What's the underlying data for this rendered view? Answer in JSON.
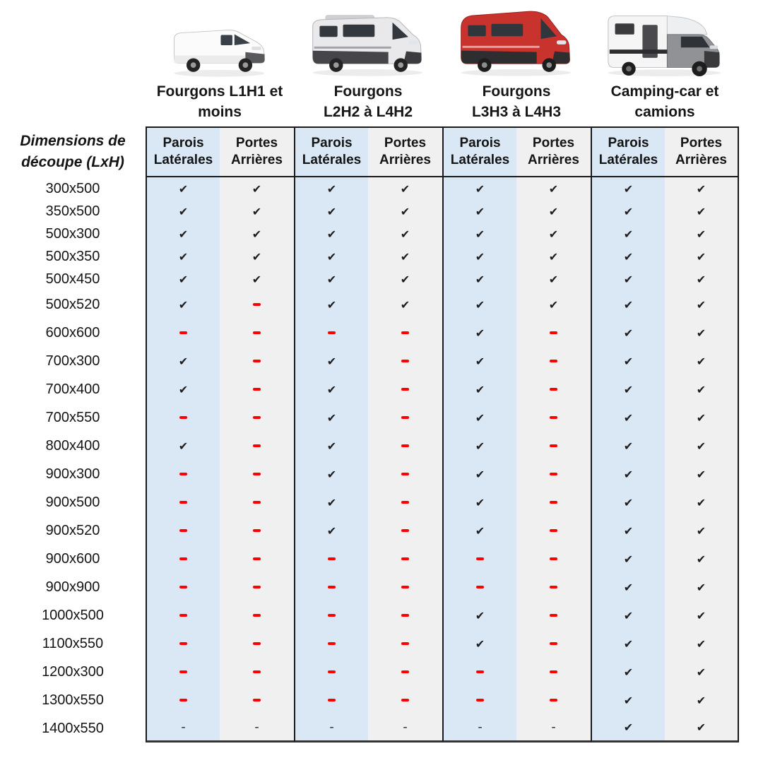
{
  "groups": [
    {
      "id": "fourgons-l1h1",
      "title_lines": [
        "Fourgons L1H1 et",
        "moins"
      ],
      "vehicle": "white-compact-van"
    },
    {
      "id": "fourgons-l2h2-l4h2",
      "title_lines": [
        "Fourgons",
        "L2H2 à L4H2"
      ],
      "vehicle": "grey-camper-van"
    },
    {
      "id": "fourgons-l3h3-l4h3",
      "title_lines": [
        "Fourgons",
        "L3H3 à L4H3"
      ],
      "vehicle": "red-high-roof-van"
    },
    {
      "id": "camping-car",
      "title_lines": [
        "Camping-car et",
        "camions"
      ],
      "vehicle": "grey-motorhome"
    }
  ],
  "row_header_lines": [
    "Dimensions de",
    "découpe (LxH)"
  ],
  "sub_columns": [
    {
      "lines": [
        "Parois",
        "Latérales"
      ]
    },
    {
      "lines": [
        "Portes",
        "Arrières"
      ]
    }
  ],
  "symbols": {
    "check": "✔",
    "black_dash": "-"
  },
  "colors": {
    "parois_column_bg": "#DAE8F6",
    "portes_column_bg": "#F0F0F0",
    "check": "#1D1D20",
    "red_dash": "#FF0000",
    "black_dash": "#333333",
    "border": "#1A1A1A"
  },
  "rows": [
    {
      "dim": "300x500",
      "compact": true,
      "cells": [
        "check",
        "check",
        "check",
        "check",
        "check",
        "check",
        "check",
        "check"
      ]
    },
    {
      "dim": "350x500",
      "compact": true,
      "cells": [
        "check",
        "check",
        "check",
        "check",
        "check",
        "check",
        "check",
        "check"
      ]
    },
    {
      "dim": "500x300",
      "compact": true,
      "cells": [
        "check",
        "check",
        "check",
        "check",
        "check",
        "check",
        "check",
        "check"
      ]
    },
    {
      "dim": "500x350",
      "compact": true,
      "cells": [
        "check",
        "check",
        "check",
        "check",
        "check",
        "check",
        "check",
        "check"
      ]
    },
    {
      "dim": "500x450",
      "compact": true,
      "cells": [
        "check",
        "check",
        "check",
        "check",
        "check",
        "check",
        "check",
        "check"
      ]
    },
    {
      "dim": "500x520",
      "compact": false,
      "cells": [
        "check",
        "red_dash",
        "check",
        "check",
        "check",
        "check",
        "check",
        "check"
      ]
    },
    {
      "dim": "600x600",
      "compact": false,
      "cells": [
        "red_dash",
        "red_dash",
        "red_dash",
        "red_dash",
        "check",
        "red_dash",
        "check",
        "check"
      ]
    },
    {
      "dim": "700x300",
      "compact": false,
      "cells": [
        "check",
        "red_dash",
        "check",
        "red_dash",
        "check",
        "red_dash",
        "check",
        "check"
      ]
    },
    {
      "dim": "700x400",
      "compact": false,
      "cells": [
        "check",
        "red_dash",
        "check",
        "red_dash",
        "check",
        "red_dash",
        "check",
        "check"
      ]
    },
    {
      "dim": "700x550",
      "compact": false,
      "cells": [
        "red_dash",
        "red_dash",
        "check",
        "red_dash",
        "check",
        "red_dash",
        "check",
        "check"
      ]
    },
    {
      "dim": "800x400",
      "compact": false,
      "cells": [
        "check",
        "red_dash",
        "check",
        "red_dash",
        "check",
        "red_dash",
        "check",
        "check"
      ]
    },
    {
      "dim": "900x300",
      "compact": false,
      "cells": [
        "red_dash",
        "red_dash",
        "check",
        "red_dash",
        "check",
        "red_dash",
        "check",
        "check"
      ]
    },
    {
      "dim": "900x500",
      "compact": false,
      "cells": [
        "red_dash",
        "red_dash",
        "check",
        "red_dash",
        "check",
        "red_dash",
        "check",
        "check"
      ]
    },
    {
      "dim": "900x520",
      "compact": false,
      "cells": [
        "red_dash",
        "red_dash",
        "check",
        "red_dash",
        "check",
        "red_dash",
        "check",
        "check"
      ]
    },
    {
      "dim": "900x600",
      "compact": false,
      "cells": [
        "red_dash",
        "red_dash",
        "red_dash",
        "red_dash",
        "red_dash",
        "red_dash",
        "check",
        "check"
      ]
    },
    {
      "dim": "900x900",
      "compact": false,
      "cells": [
        "red_dash",
        "red_dash",
        "red_dash",
        "red_dash",
        "red_dash",
        "red_dash",
        "check",
        "check"
      ]
    },
    {
      "dim": "1000x500",
      "compact": false,
      "cells": [
        "red_dash",
        "red_dash",
        "red_dash",
        "red_dash",
        "check",
        "red_dash",
        "check",
        "check"
      ]
    },
    {
      "dim": "1100x550",
      "compact": false,
      "cells": [
        "red_dash",
        "red_dash",
        "red_dash",
        "red_dash",
        "check",
        "red_dash",
        "check",
        "check"
      ]
    },
    {
      "dim": "1200x300",
      "compact": false,
      "cells": [
        "red_dash",
        "red_dash",
        "red_dash",
        "red_dash",
        "red_dash",
        "red_dash",
        "check",
        "check"
      ]
    },
    {
      "dim": "1300x550",
      "compact": false,
      "cells": [
        "red_dash",
        "red_dash",
        "red_dash",
        "red_dash",
        "red_dash",
        "red_dash",
        "check",
        "check"
      ]
    },
    {
      "dim": "1400x550",
      "compact": false,
      "cells": [
        "black_dash",
        "black_dash",
        "black_dash",
        "black_dash",
        "black_dash",
        "black_dash",
        "check",
        "check"
      ]
    }
  ]
}
